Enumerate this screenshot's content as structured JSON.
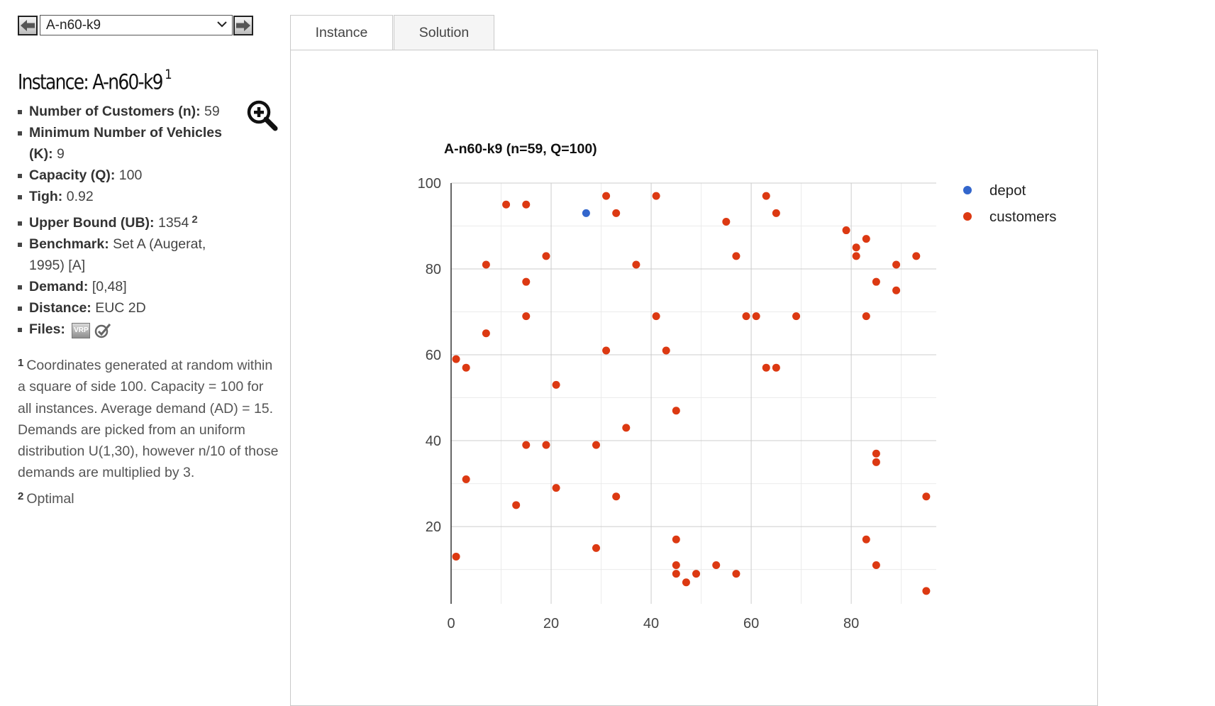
{
  "selector": {
    "prev_icon": "arrow-left-icon",
    "next_icon": "arrow-right-icon",
    "selected": "A-n60-k9"
  },
  "instance": {
    "title_prefix": "Instance:",
    "title_name": "A-n60-k9",
    "title_sup": "1",
    "zoom_icon": "zoom-in-icon",
    "props": {
      "customers_label": "Number of Customers (n):",
      "customers_value": "59",
      "vehicles_label": "Minimum Number of Vehicles (K):",
      "vehicles_value": "9",
      "capacity_label": "Capacity (Q):",
      "capacity_value": "100",
      "tigh_label": "Tigh:",
      "tigh_value": "0.92",
      "ub_label": "Upper Bound (UB):",
      "ub_value": "1354",
      "ub_sup": "2",
      "benchmark_label": "Benchmark:",
      "benchmark_value": "Set A (Augerat, 1995) [A]",
      "demand_label": "Demand:",
      "demand_value": "[0,48]",
      "distance_label": "Distance:",
      "distance_value": "EUC 2D",
      "files_label": "Files:",
      "files_vrp_icon_text": "VRP"
    }
  },
  "footnotes": {
    "fn1_num": "1",
    "fn1_text": "Coordinates generated at random within a square of side 100. Capacity = 100 for all instances. Average demand (AD) = 15. Demands are picked from an uniform distribution U(1,30), however n/10 of those demands are multiplied by 3.",
    "fn2_num": "2",
    "fn2_text": "Optimal"
  },
  "tabs": {
    "instance": "Instance",
    "solution": "Solution"
  },
  "colors": {
    "depot": "#3366cc",
    "customers": "#dc3912",
    "grid": "#cccccc",
    "minor_grid": "#ebebeb"
  },
  "chart_data": {
    "type": "scatter",
    "title": "A-n60-k9 (n=59, Q=100)",
    "xlim": [
      0,
      97
    ],
    "ylim": [
      2,
      100
    ],
    "xticks": [
      0,
      20,
      40,
      60,
      80
    ],
    "yticks": [
      20,
      40,
      60,
      80,
      100
    ],
    "grid": true,
    "legend_position": "right",
    "series": [
      {
        "name": "depot",
        "color": "#3366cc",
        "points": [
          [
            27,
            93
          ]
        ]
      },
      {
        "name": "customers",
        "color": "#dc3912",
        "points": [
          [
            1,
            59
          ],
          [
            1,
            13
          ],
          [
            3,
            57
          ],
          [
            3,
            31
          ],
          [
            7,
            81
          ],
          [
            7,
            65
          ],
          [
            11,
            95
          ],
          [
            13,
            25
          ],
          [
            15,
            95
          ],
          [
            15,
            77
          ],
          [
            15,
            69
          ],
          [
            15,
            39
          ],
          [
            19,
            83
          ],
          [
            19,
            39
          ],
          [
            21,
            53
          ],
          [
            21,
            29
          ],
          [
            29,
            39
          ],
          [
            29,
            15
          ],
          [
            31,
            97
          ],
          [
            31,
            61
          ],
          [
            33,
            93
          ],
          [
            33,
            27
          ],
          [
            35,
            43
          ],
          [
            37,
            81
          ],
          [
            41,
            97
          ],
          [
            41,
            69
          ],
          [
            43,
            61
          ],
          [
            45,
            47
          ],
          [
            45,
            17
          ],
          [
            45,
            11
          ],
          [
            45,
            9
          ],
          [
            47,
            7
          ],
          [
            49,
            9
          ],
          [
            53,
            11
          ],
          [
            55,
            91
          ],
          [
            57,
            83
          ],
          [
            57,
            9
          ],
          [
            59,
            69
          ],
          [
            61,
            69
          ],
          [
            63,
            97
          ],
          [
            63,
            57
          ],
          [
            65,
            93
          ],
          [
            65,
            57
          ],
          [
            69,
            69
          ],
          [
            79,
            89
          ],
          [
            81,
            85
          ],
          [
            81,
            83
          ],
          [
            83,
            87
          ],
          [
            83,
            69
          ],
          [
            83,
            17
          ],
          [
            85,
            77
          ],
          [
            85,
            37
          ],
          [
            85,
            35
          ],
          [
            85,
            11
          ],
          [
            89,
            81
          ],
          [
            89,
            75
          ],
          [
            93,
            83
          ],
          [
            95,
            27
          ],
          [
            95,
            5
          ]
        ]
      }
    ]
  }
}
